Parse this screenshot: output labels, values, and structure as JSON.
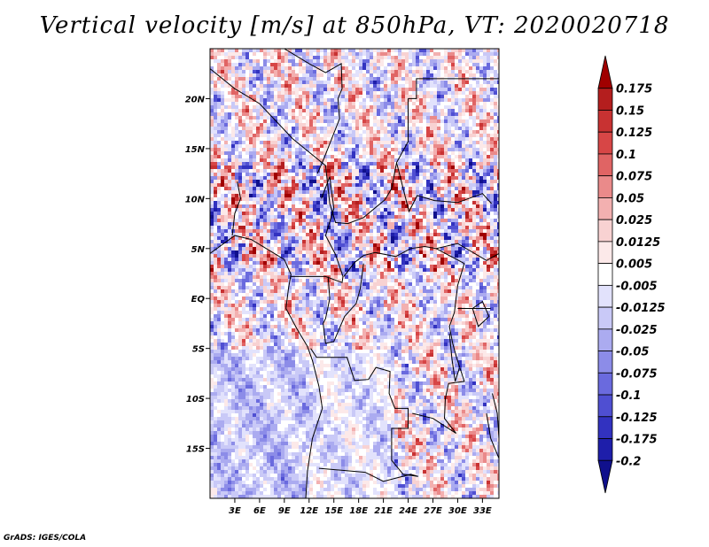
{
  "title": "Vertical velocity [m/s] at 850hPa, VT: 2020020718",
  "credit": "GrADS: IGES/COLA",
  "chart_data": {
    "type": "heatmap",
    "variable": "Vertical velocity",
    "units": "m/s",
    "level": "850hPa",
    "valid_time": "2020020718",
    "x_axis": {
      "range": [
        0,
        35
      ],
      "ticks": [
        3,
        6,
        9,
        12,
        15,
        18,
        21,
        24,
        27,
        30,
        33
      ],
      "tick_labels": [
        "3E",
        "6E",
        "9E",
        "12E",
        "15E",
        "18E",
        "21E",
        "24E",
        "27E",
        "30E",
        "33E"
      ]
    },
    "y_axis": {
      "range": [
        -20,
        25
      ],
      "ticks": [
        20,
        15,
        10,
        5,
        0,
        -5,
        -10,
        -15
      ],
      "tick_labels": [
        "20N",
        "15N",
        "10N",
        "5N",
        "EQ",
        "5S",
        "10S",
        "15S"
      ]
    },
    "colorbar": {
      "levels": [
        "0.175",
        "0.15",
        "0.125",
        "0.1",
        "0.075",
        "0.05",
        "0.025",
        "0.0125",
        "0.005",
        "-0.005",
        "-0.0125",
        "-0.025",
        "-0.05",
        "-0.075",
        "-0.1",
        "-0.125",
        "-0.175",
        "-0.2"
      ],
      "colors": [
        "#a00000",
        "#b41e1e",
        "#c83232",
        "#d74646",
        "#e06464",
        "#ea8a8a",
        "#f3b0b0",
        "#f8d2d2",
        "#fce9e9",
        "#ffffff",
        "#e2e2fc",
        "#c9c9f7",
        "#ababf0",
        "#8c8ce8",
        "#6a6ade",
        "#4f4fd2",
        "#3232c0",
        "#1e1eaa",
        "#10108c"
      ]
    },
    "grid": false,
    "legend": "right"
  }
}
